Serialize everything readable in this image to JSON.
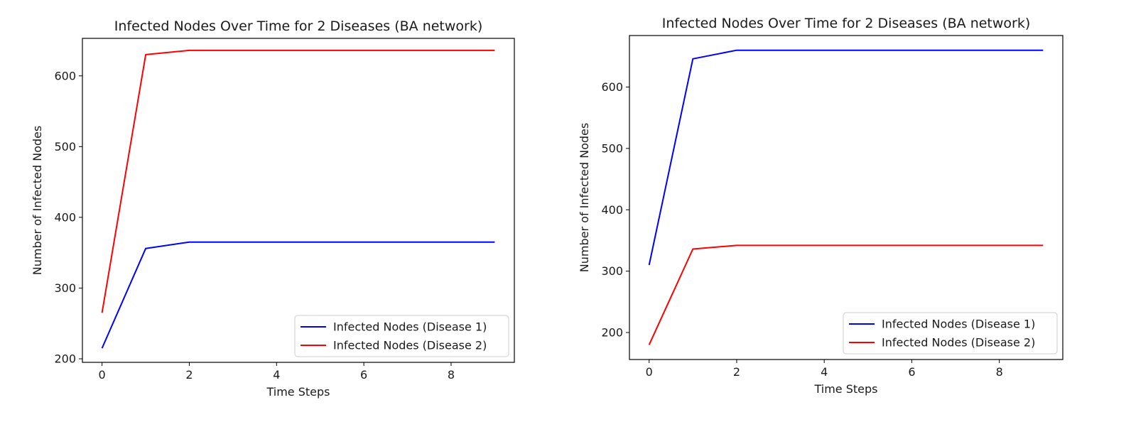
{
  "chart_data": [
    {
      "type": "line",
      "title": "Infected Nodes Over Time for 2 Diseases (BA network)",
      "xlabel": "Time Steps",
      "ylabel": "Number of Infected Nodes",
      "xlim": [
        -0.45,
        9.45
      ],
      "ylim": [
        195,
        653
      ],
      "xticks": [
        0,
        2,
        4,
        6,
        8
      ],
      "yticks": [
        200,
        300,
        400,
        500,
        600
      ],
      "grid": false,
      "legend_position": "lower right",
      "x": [
        0,
        1,
        2,
        3,
        4,
        5,
        6,
        7,
        8,
        9
      ],
      "series": [
        {
          "name": "Infected Nodes (Disease 1)",
          "color": "#0000ff",
          "values": [
            215,
            356,
            365,
            365,
            365,
            365,
            365,
            365,
            365,
            365
          ]
        },
        {
          "name": "Infected Nodes (Disease 2)",
          "color": "#ff0000",
          "values": [
            265,
            630,
            636,
            636,
            636,
            636,
            636,
            636,
            636,
            636
          ]
        }
      ]
    },
    {
      "type": "line",
      "title": "Infected Nodes Over Time for 2 Diseases (BA network)",
      "xlabel": "Time Steps",
      "ylabel": "Number of Infected Nodes",
      "xlim": [
        -0.45,
        9.45
      ],
      "ylim": [
        156,
        684
      ],
      "xticks": [
        0,
        2,
        4,
        6,
        8
      ],
      "yticks": [
        200,
        300,
        400,
        500,
        600
      ],
      "grid": false,
      "legend_position": "lower right",
      "x": [
        0,
        1,
        2,
        3,
        4,
        5,
        6,
        7,
        8,
        9
      ],
      "series": [
        {
          "name": "Infected Nodes (Disease 1)",
          "color": "#0000ff",
          "values": [
            310,
            646,
            660,
            660,
            660,
            660,
            660,
            660,
            660,
            660
          ]
        },
        {
          "name": "Infected Nodes (Disease 2)",
          "color": "#ff0000",
          "values": [
            180,
            336,
            342,
            342,
            342,
            342,
            342,
            342,
            342,
            342
          ]
        }
      ]
    }
  ]
}
